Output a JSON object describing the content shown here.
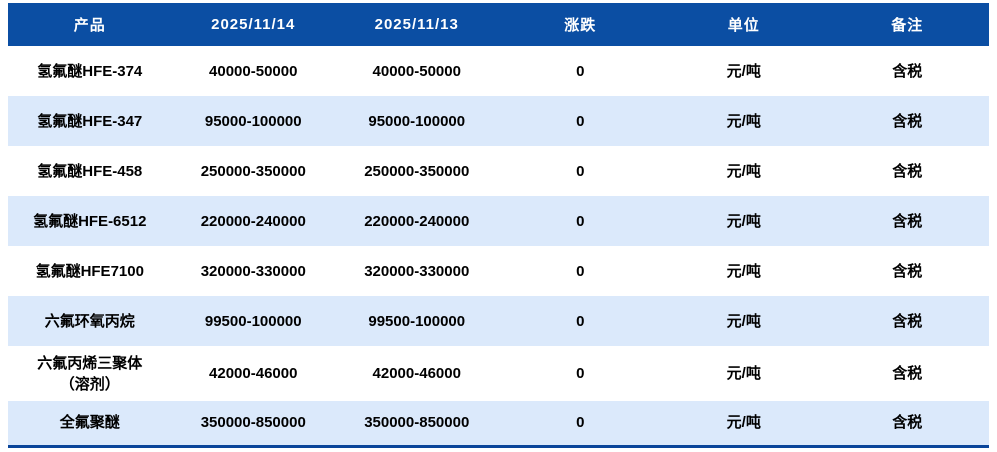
{
  "colors": {
    "header_bg": "#0b4ea3",
    "stripe_bg": "#dbe9fb",
    "bottom_border": "#0a459a",
    "header_text": "#ffffff",
    "body_text": "#000000"
  },
  "table": {
    "columns": [
      {
        "key": "product",
        "label": "产品"
      },
      {
        "key": "price_1114",
        "label": "2025/11/14"
      },
      {
        "key": "price_1113",
        "label": "2025/11/13"
      },
      {
        "key": "change",
        "label": "涨跌"
      },
      {
        "key": "unit",
        "label": "单位"
      },
      {
        "key": "note",
        "label": "备注"
      }
    ],
    "rows": [
      {
        "product": "氢氟醚HFE-374",
        "price_1114": "40000-50000",
        "price_1113": "40000-50000",
        "change": "0",
        "unit": "元/吨",
        "note": "含税"
      },
      {
        "product": "氢氟醚HFE-347",
        "price_1114": "95000-100000",
        "price_1113": "95000-100000",
        "change": "0",
        "unit": "元/吨",
        "note": "含税"
      },
      {
        "product": "氢氟醚HFE-458",
        "price_1114": "250000-350000",
        "price_1113": "250000-350000",
        "change": "0",
        "unit": "元/吨",
        "note": "含税"
      },
      {
        "product": "氢氟醚HFE-6512",
        "price_1114": "220000-240000",
        "price_1113": "220000-240000",
        "change": "0",
        "unit": "元/吨",
        "note": "含税"
      },
      {
        "product": "氢氟醚HFE7100",
        "price_1114": "320000-330000",
        "price_1113": "320000-330000",
        "change": "0",
        "unit": "元/吨",
        "note": "含税"
      },
      {
        "product": "六氟环氧丙烷",
        "price_1114": "99500-100000",
        "price_1113": "99500-100000",
        "change": "0",
        "unit": "元/吨",
        "note": "含税"
      },
      {
        "product": "六氟丙烯三聚体\n（溶剂）",
        "price_1114": "42000-46000",
        "price_1113": "42000-46000",
        "change": "0",
        "unit": "元/吨",
        "note": "含税"
      },
      {
        "product": "全氟聚醚",
        "price_1114": "350000-850000",
        "price_1113": "350000-850000",
        "change": "0",
        "unit": "元/吨",
        "note": "含税"
      }
    ]
  },
  "chart_data": {
    "type": "table",
    "title": "",
    "columns": [
      "产品",
      "2025/11/14",
      "2025/11/13",
      "涨跌",
      "单位",
      "备注"
    ],
    "rows": [
      [
        "氢氟醚HFE-374",
        "40000-50000",
        "40000-50000",
        "0",
        "元/吨",
        "含税"
      ],
      [
        "氢氟醚HFE-347",
        "95000-100000",
        "95000-100000",
        "0",
        "元/吨",
        "含税"
      ],
      [
        "氢氟醚HFE-458",
        "250000-350000",
        "250000-350000",
        "0",
        "元/吨",
        "含税"
      ],
      [
        "氢氟醚HFE-6512",
        "220000-240000",
        "220000-240000",
        "0",
        "元/吨",
        "含税"
      ],
      [
        "氢氟醚HFE7100",
        "320000-330000",
        "320000-330000",
        "0",
        "元/吨",
        "含税"
      ],
      [
        "六氟环氧丙烷",
        "99500-100000",
        "99500-100000",
        "0",
        "元/吨",
        "含税"
      ],
      [
        "六氟丙烯三聚体（溶剂）",
        "42000-46000",
        "42000-46000",
        "0",
        "元/吨",
        "含税"
      ],
      [
        "全氟聚醚",
        "350000-850000",
        "350000-850000",
        "0",
        "元/吨",
        "含税"
      ]
    ]
  }
}
